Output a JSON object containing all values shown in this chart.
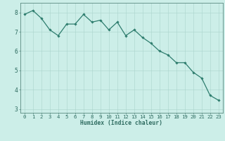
{
  "x": [
    0,
    1,
    2,
    3,
    4,
    5,
    6,
    7,
    8,
    9,
    10,
    11,
    12,
    13,
    14,
    15,
    16,
    17,
    18,
    19,
    20,
    21,
    22,
    23
  ],
  "y": [
    7.9,
    8.1,
    7.7,
    7.1,
    6.8,
    7.4,
    7.4,
    7.9,
    7.5,
    7.6,
    7.1,
    7.5,
    6.8,
    7.1,
    6.7,
    6.4,
    6.0,
    5.8,
    5.4,
    5.4,
    4.9,
    4.6,
    3.7,
    3.45
  ],
  "line_color": "#2e7d6e",
  "marker": "D",
  "marker_size": 1.8,
  "line_width": 0.9,
  "background_color": "#cceee8",
  "grid_color": "#aad4cc",
  "tick_color": "#2e6b60",
  "axis_color": "#5a8a80",
  "xlabel": "Humidex (Indice chaleur)",
  "ylabel": "",
  "title": "",
  "xlim": [
    -0.5,
    23.5
  ],
  "ylim": [
    2.8,
    8.5
  ],
  "yticks": [
    3,
    4,
    5,
    6,
    7,
    8
  ],
  "xticks": [
    0,
    1,
    2,
    3,
    4,
    5,
    6,
    7,
    8,
    9,
    10,
    11,
    12,
    13,
    14,
    15,
    16,
    17,
    18,
    19,
    20,
    21,
    22,
    23
  ],
  "xlabel_fontsize": 5.8,
  "tick_fontsize": 5.2,
  "ytick_fontsize": 5.8
}
